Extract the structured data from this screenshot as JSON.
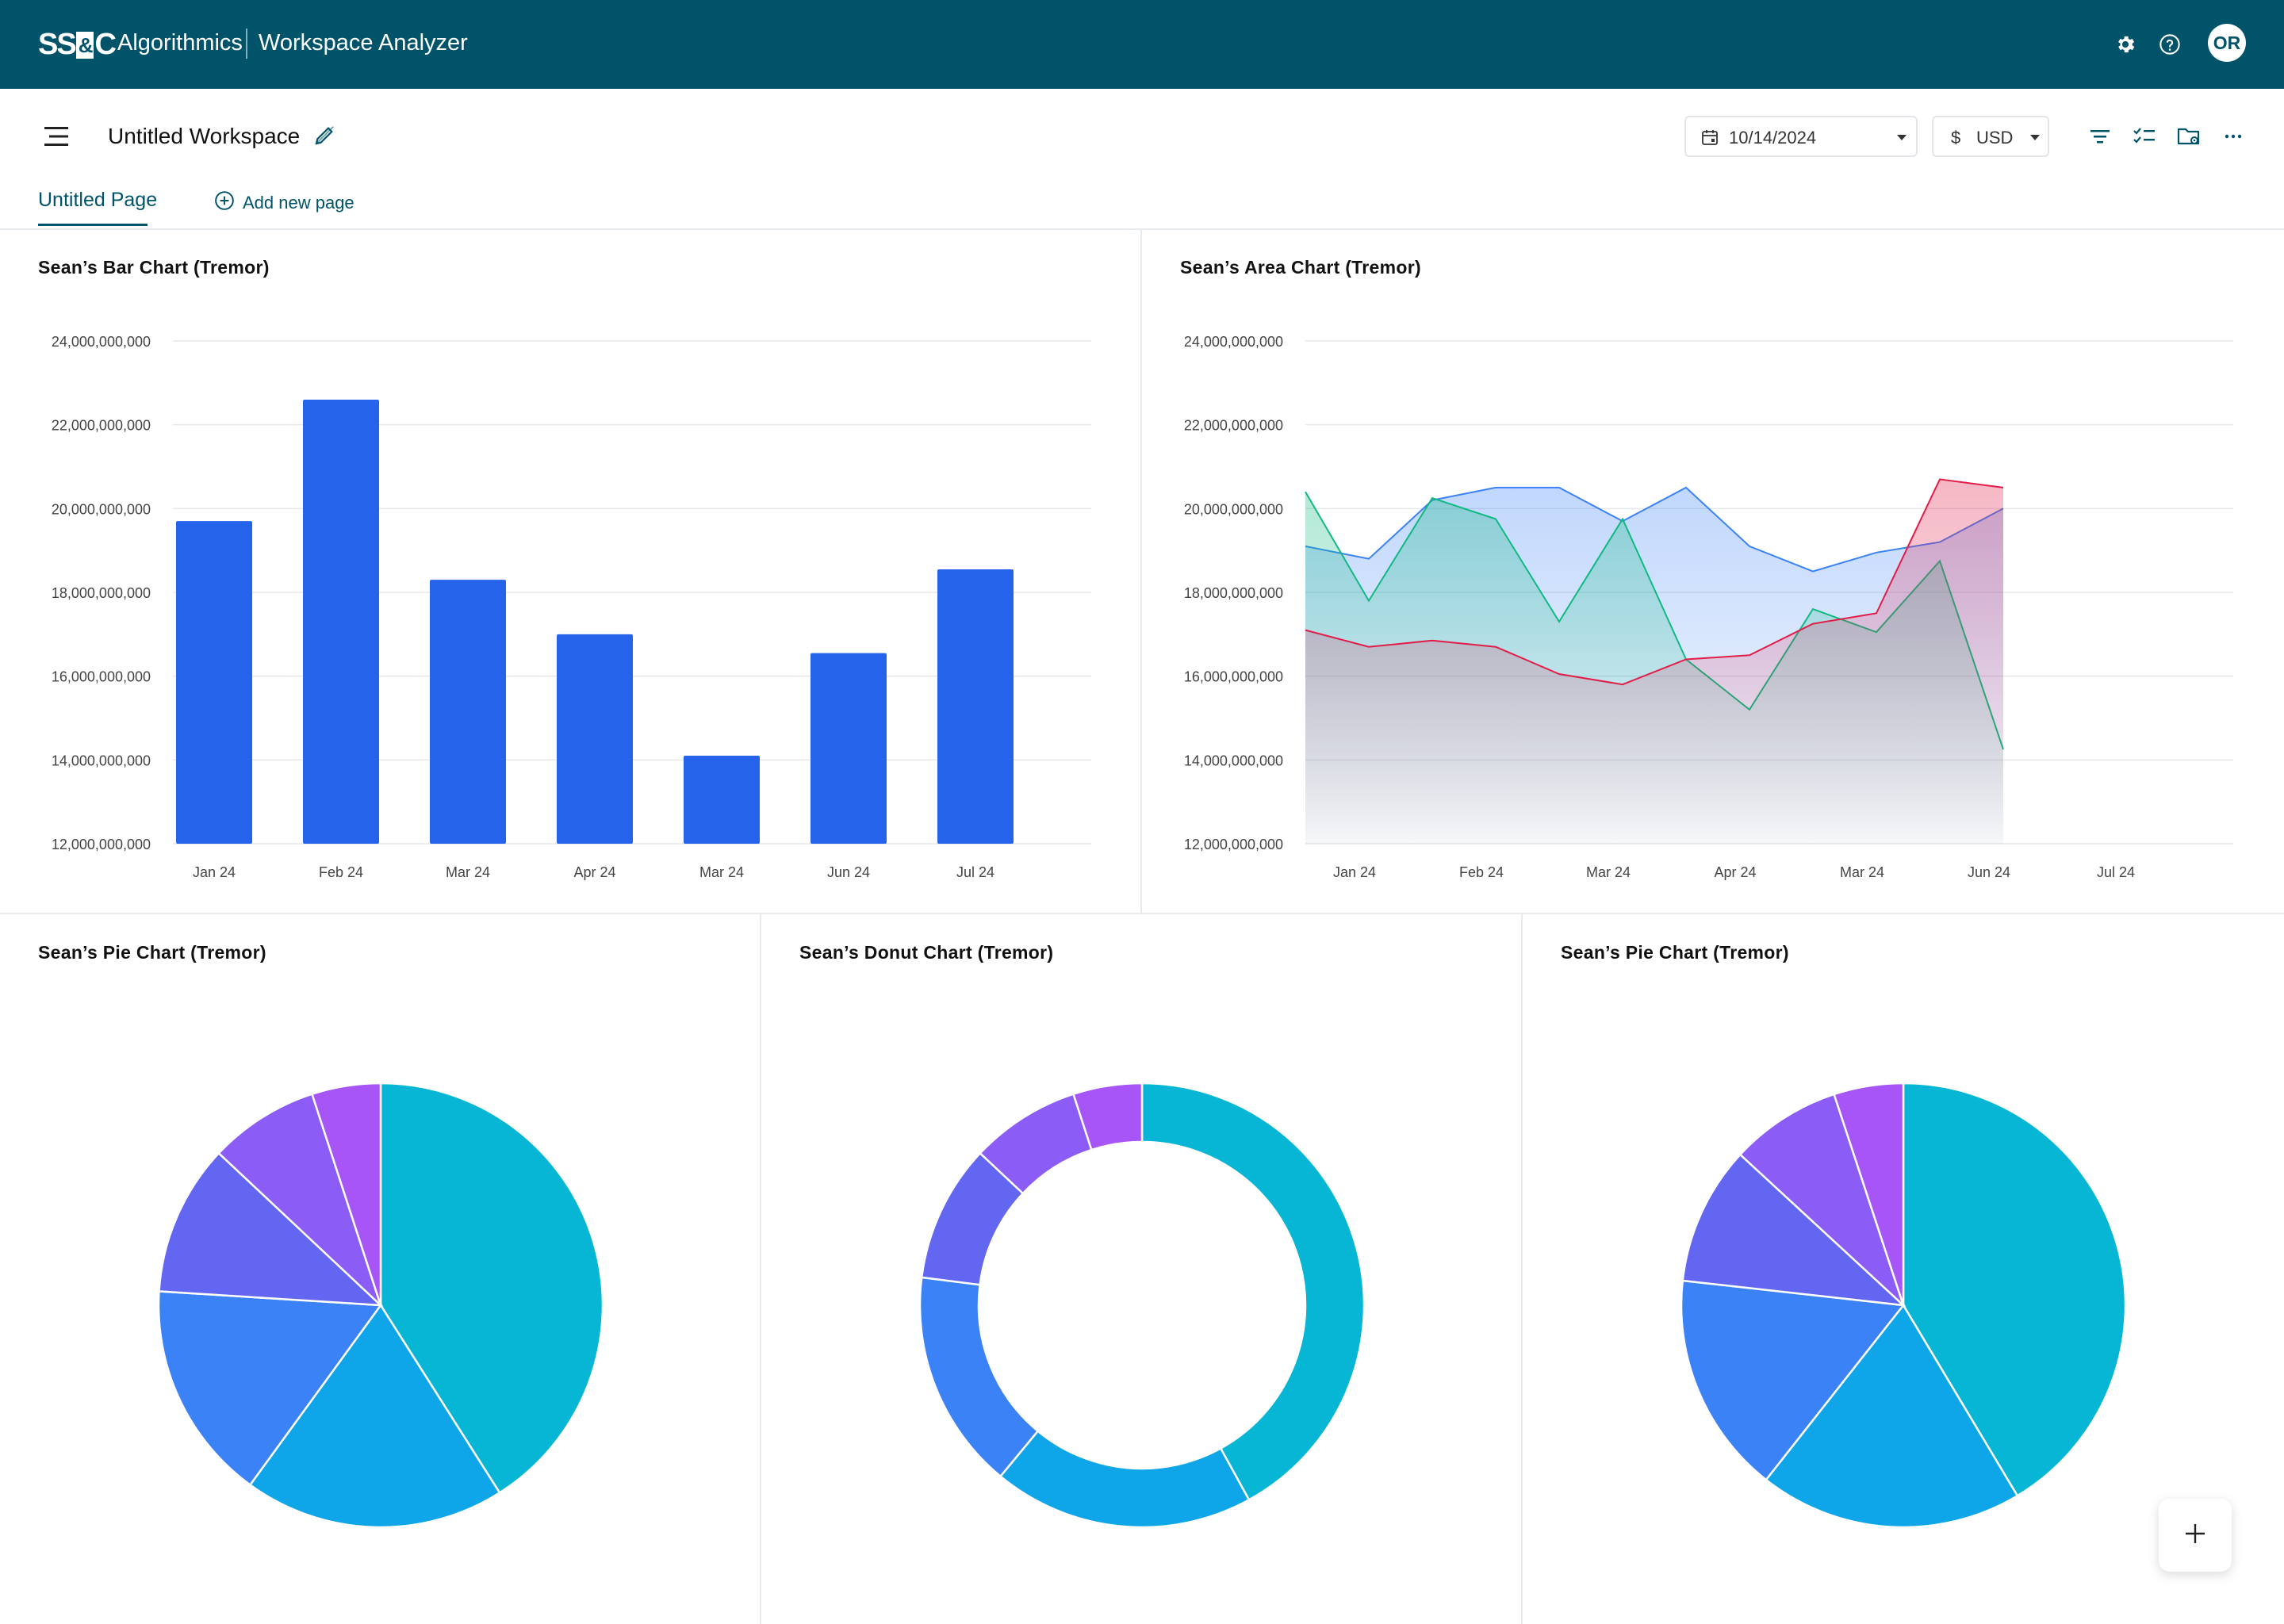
{
  "topbar": {
    "logo_text_left": "SS",
    "logo_text_amp": "&",
    "logo_text_right": "C",
    "brand": "Algorithmics",
    "app_name": "Workspace Analyzer",
    "avatar_initials": "OR",
    "bg_color": "#005369"
  },
  "workspace": {
    "title": "Untitled Workspace",
    "date_value": "10/14/2024",
    "currency_symbol": "$",
    "currency_value": "USD"
  },
  "tabs": {
    "active_label": "Untitled Page",
    "add_label": "Add new page"
  },
  "panels": {
    "bar_title": "Sean’s Bar Chart (Tremor)",
    "area_title": "Sean’s Area Chart (Tremor)",
    "pie1_title": "Sean’s Pie Chart (Tremor)",
    "donut_title": "Sean’s Donut Chart (Tremor)",
    "pie2_title": "Sean’s Pie Chart (Tremor)"
  },
  "chart_data": [
    {
      "type": "bar",
      "categories": [
        "Jan 24",
        "Feb 24",
        "Mar 24",
        "Apr 24",
        "Mar 24",
        "Jun 24",
        "Jul 24"
      ],
      "values": [
        19700000000,
        22600000000,
        18300000000,
        17000000000,
        14100000000,
        16550000000,
        18550000000
      ],
      "ylim": [
        12000000000,
        24000000000
      ],
      "yticks": [
        "12,000,000,000",
        "14,000,000,000",
        "16,000,000,000",
        "18,000,000,000",
        "20,000,000,000",
        "22,000,000,000",
        "24,000,000,000"
      ],
      "grid": true,
      "color": "#2563eb"
    },
    {
      "type": "area",
      "categories": [
        "Jan 24",
        "Feb 24",
        "Mar 24",
        "Apr 24",
        "Mar 24",
        "Jun 24",
        "Jul 24"
      ],
      "ylim": [
        12000000000,
        24000000000
      ],
      "yticks": [
        "12,000,000,000",
        "14,000,000,000",
        "16,000,000,000",
        "18,000,000,000",
        "20,000,000,000",
        "22,000,000,000",
        "24,000,000,000"
      ],
      "grid": true,
      "x": [
        0,
        0.5,
        1,
        1.5,
        2,
        2.5,
        3,
        3.5,
        4,
        4.5,
        5,
        5.5,
        6,
        6.5,
        7
      ],
      "series": [
        {
          "color": "#3b82f6",
          "values": [
            19100000000,
            18800000000,
            20200000000,
            20500000000,
            20500000000,
            19700000000,
            20500000000,
            19100000000,
            18500000000,
            18950000000,
            19200000000,
            20000000000,
            null,
            null,
            null
          ]
        },
        {
          "color": "#10b981",
          "values": [
            20400000000,
            17800000000,
            20250000000,
            19750000000,
            17300000000,
            19750000000,
            16400000000,
            15200000000,
            17600000000,
            17050000000,
            18750000000,
            14250000000,
            null,
            null,
            null
          ]
        },
        {
          "color": "#e11d48",
          "values": [
            17100000000,
            16700000000,
            16850000000,
            16700000000,
            16050000000,
            15800000000,
            16400000000,
            16500000000,
            17250000000,
            17500000000,
            20700000000,
            20500000000,
            null,
            null,
            null
          ]
        }
      ]
    },
    {
      "type": "pie",
      "values": [
        41,
        19,
        16,
        11,
        8,
        5
      ],
      "colors": [
        "#06b6d4",
        "#0ea5e9",
        "#3b82f6",
        "#6366f1",
        "#8b5cf6",
        "#a855f7"
      ]
    },
    {
      "type": "donut",
      "values": [
        42,
        19,
        16,
        10,
        8,
        5
      ],
      "colors": [
        "#06b6d4",
        "#0ea5e9",
        "#3b82f6",
        "#6366f1",
        "#8b5cf6",
        "#a855f7"
      ]
    },
    {
      "type": "pie",
      "values": [
        41,
        19,
        16,
        10,
        8,
        5
      ],
      "colors": [
        "#06b6d4",
        "#0ea5e9",
        "#3b82f6",
        "#6366f1",
        "#8b5cf6",
        "#a855f7"
      ]
    }
  ]
}
